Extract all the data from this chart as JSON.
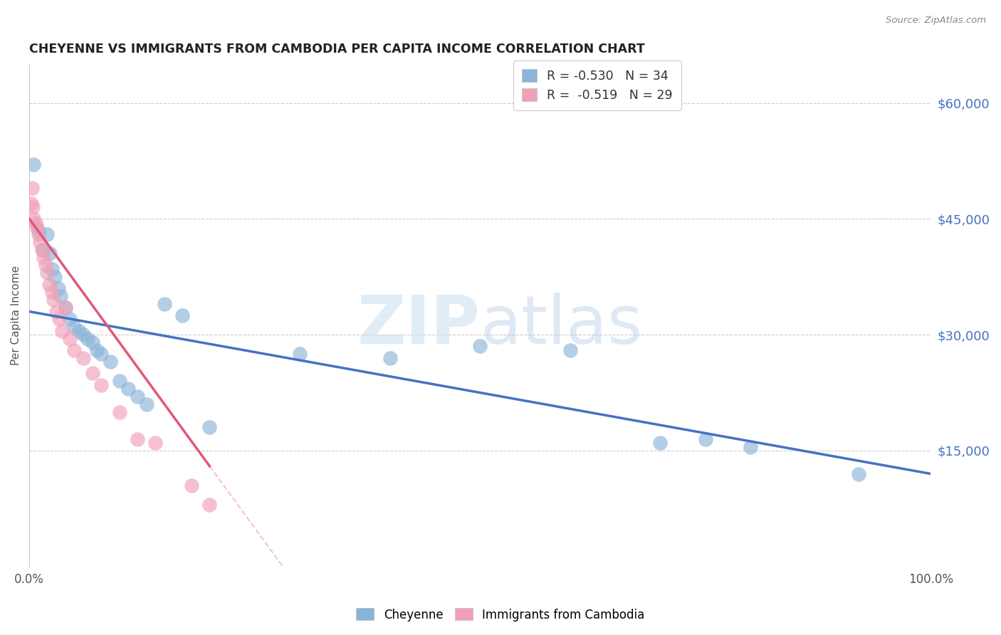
{
  "title": "CHEYENNE VS IMMIGRANTS FROM CAMBODIA PER CAPITA INCOME CORRELATION CHART",
  "source": "Source: ZipAtlas.com",
  "ylabel": "Per Capita Income",
  "ytick_values": [
    15000,
    30000,
    45000,
    60000
  ],
  "ytick_labels": [
    "$15,000",
    "$30,000",
    "$45,000",
    "$60,000"
  ],
  "ylim": [
    0,
    65000
  ],
  "xlim": [
    0,
    100
  ],
  "cheyenne_color": "#8ab4d8",
  "cambodia_color": "#f0a0b8",
  "cheyenne_line_color": "#4472c4",
  "cambodia_line_color": "#e05878",
  "legend_line1": "R = -0.530   N = 34",
  "legend_line2": "R =  -0.519   N = 29",
  "cheyenne_points": [
    [
      0.5,
      52000
    ],
    [
      1.0,
      43500
    ],
    [
      1.5,
      41000
    ],
    [
      2.0,
      43000
    ],
    [
      2.3,
      40500
    ],
    [
      2.5,
      38500
    ],
    [
      2.8,
      37500
    ],
    [
      3.2,
      36000
    ],
    [
      3.5,
      35000
    ],
    [
      4.0,
      33500
    ],
    [
      4.5,
      32000
    ],
    [
      5.0,
      31000
    ],
    [
      5.5,
      30500
    ],
    [
      6.0,
      30000
    ],
    [
      6.5,
      29500
    ],
    [
      7.0,
      29000
    ],
    [
      7.5,
      28000
    ],
    [
      8.0,
      27500
    ],
    [
      9.0,
      26500
    ],
    [
      10.0,
      24000
    ],
    [
      11.0,
      23000
    ],
    [
      12.0,
      22000
    ],
    [
      13.0,
      21000
    ],
    [
      15.0,
      34000
    ],
    [
      17.0,
      32500
    ],
    [
      20.0,
      18000
    ],
    [
      30.0,
      27500
    ],
    [
      40.0,
      27000
    ],
    [
      50.0,
      28500
    ],
    [
      60.0,
      28000
    ],
    [
      70.0,
      16000
    ],
    [
      75.0,
      16500
    ],
    [
      80.0,
      15500
    ],
    [
      92.0,
      12000
    ]
  ],
  "cambodia_points": [
    [
      0.2,
      47000
    ],
    [
      0.4,
      46500
    ],
    [
      0.5,
      45000
    ],
    [
      0.7,
      44500
    ],
    [
      0.8,
      44000
    ],
    [
      1.0,
      43000
    ],
    [
      1.2,
      42000
    ],
    [
      1.4,
      41000
    ],
    [
      1.6,
      40000
    ],
    [
      1.8,
      39000
    ],
    [
      2.0,
      38000
    ],
    [
      2.2,
      36500
    ],
    [
      2.5,
      35500
    ],
    [
      2.7,
      34500
    ],
    [
      3.0,
      33000
    ],
    [
      3.3,
      32000
    ],
    [
      3.6,
      30500
    ],
    [
      4.0,
      33500
    ],
    [
      4.5,
      29500
    ],
    [
      5.0,
      28000
    ],
    [
      6.0,
      27000
    ],
    [
      7.0,
      25000
    ],
    [
      8.0,
      23500
    ],
    [
      10.0,
      20000
    ],
    [
      12.0,
      16500
    ],
    [
      14.0,
      16000
    ],
    [
      18.0,
      10500
    ],
    [
      20.0,
      8000
    ],
    [
      0.3,
      49000
    ]
  ]
}
